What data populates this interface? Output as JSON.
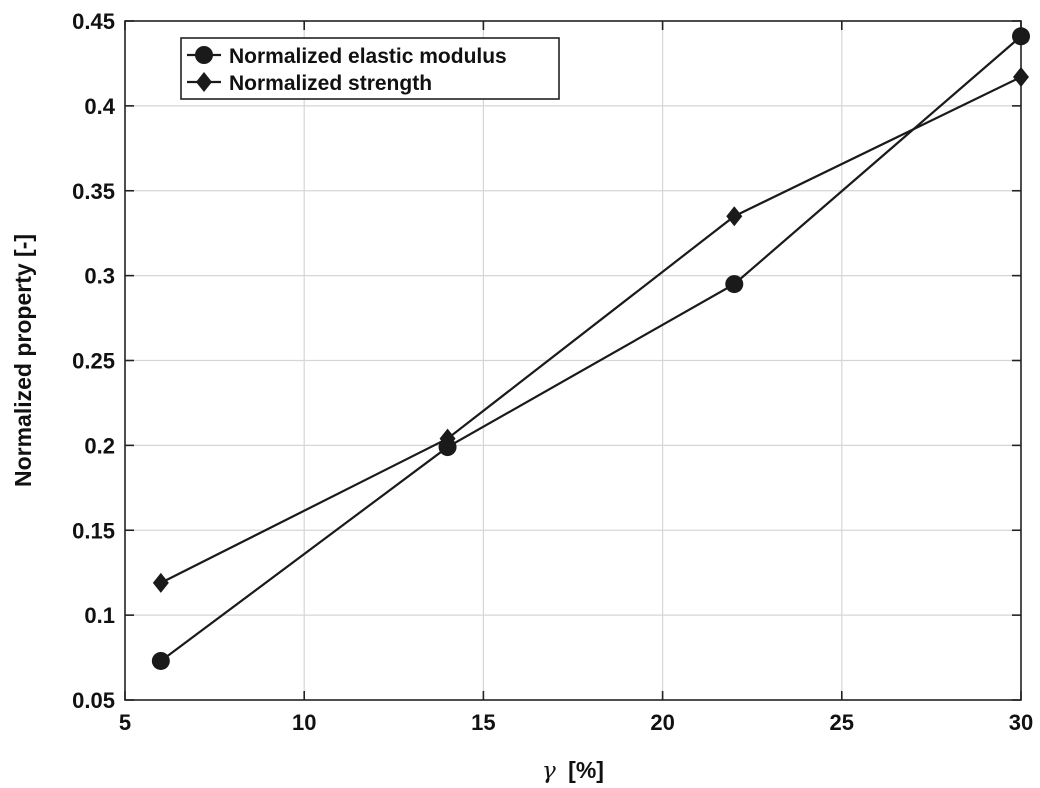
{
  "chart_data": {
    "type": "line",
    "title": "",
    "xlabel_symbol": "γ",
    "xlabel_unit": "[%]",
    "ylabel": "Normalized property [-]",
    "xlim": [
      5,
      30
    ],
    "ylim": [
      0.05,
      0.45
    ],
    "xticks": [
      5,
      10,
      15,
      20,
      25,
      30
    ],
    "xtick_labels": [
      "5",
      "10",
      "15",
      "20",
      "25",
      "30"
    ],
    "yticks": [
      0.05,
      0.1,
      0.15,
      0.2,
      0.25,
      0.3,
      0.35,
      0.4,
      0.45
    ],
    "ytick_labels": [
      "0.05",
      "0.1",
      "0.15",
      "0.2",
      "0.25",
      "0.3",
      "0.35",
      "0.4",
      "0.45"
    ],
    "grid": true,
    "legend_position": "top-left",
    "series": [
      {
        "name": "Normalized elastic modulus",
        "marker": "circle",
        "x": [
          6,
          14,
          22,
          30
        ],
        "y": [
          0.073,
          0.199,
          0.295,
          0.441
        ]
      },
      {
        "name": "Normalized strength",
        "marker": "diamond",
        "x": [
          6,
          14,
          22,
          30
        ],
        "y": [
          0.119,
          0.204,
          0.335,
          0.417
        ]
      }
    ],
    "line_color": "#1a1a1a"
  }
}
